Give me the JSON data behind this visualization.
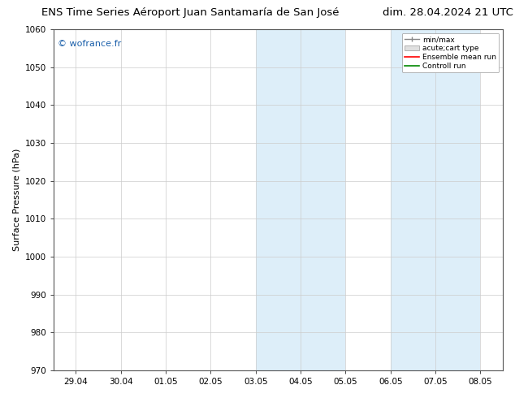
{
  "title_left": "ENS Time Series Aéroport Juan Santamaría de San José",
  "title_right": "dim. 28.04.2024 21 UTC",
  "ylabel": "Surface Pressure (hPa)",
  "ylim": [
    970,
    1060
  ],
  "yticks": [
    970,
    980,
    990,
    1000,
    1010,
    1020,
    1030,
    1040,
    1050,
    1060
  ],
  "xtick_labels": [
    "29.04",
    "30.04",
    "01.05",
    "02.05",
    "03.05",
    "04.05",
    "05.05",
    "06.05",
    "07.05",
    "08.05"
  ],
  "xtick_positions": [
    0,
    1,
    2,
    3,
    4,
    5,
    6,
    7,
    8,
    9
  ],
  "shade_bands": [
    {
      "xstart": 4.5,
      "xend": 5.5,
      "color": "#ddeef9"
    },
    {
      "xstart": 5.5,
      "xend": 6.5,
      "color": "#ddeef9"
    },
    {
      "xstart": 7.5,
      "xend": 8.5,
      "color": "#ddeef9"
    },
    {
      "xstart": 8.5,
      "xend": 9.5,
      "color": "#ddeef9"
    }
  ],
  "watermark": "© wofrance.fr",
  "watermark_color": "#1a5faa",
  "legend_labels": [
    "min/max",
    "acute;cart type",
    "Ensemble mean run",
    "Controll run"
  ],
  "bg_color": "#ffffff",
  "plot_bg_color": "#ffffff",
  "grid_color": "#cccccc",
  "title_fontsize": 9.5,
  "tick_fontsize": 7.5,
  "ylabel_fontsize": 8
}
